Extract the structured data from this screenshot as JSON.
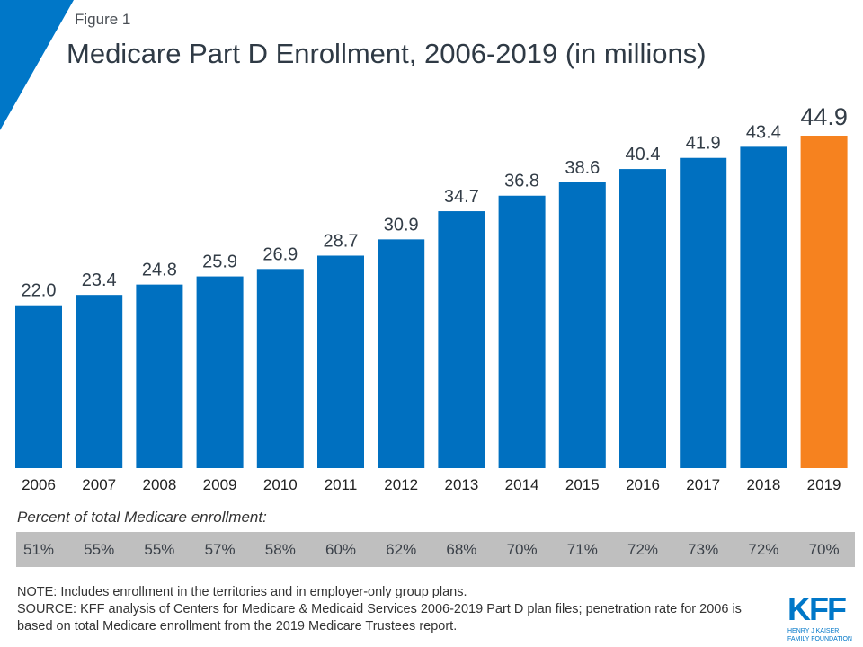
{
  "figure_label": "Figure 1",
  "title": "Medicare Part D Enrollment, 2006-2019 (in millions)",
  "colors": {
    "bar": "#0070c0",
    "highlight": "#f6821f",
    "accent_triangle": "#0077c8",
    "percent_band": "#bfbfbf"
  },
  "chart_data": {
    "type": "bar",
    "title": "Medicare Part D Enrollment, 2006-2019 (in millions)",
    "categories": [
      "2006",
      "2007",
      "2008",
      "2009",
      "2010",
      "2011",
      "2012",
      "2013",
      "2014",
      "2015",
      "2016",
      "2017",
      "2018",
      "2019"
    ],
    "values": [
      22.0,
      23.4,
      24.8,
      25.9,
      26.9,
      28.7,
      30.9,
      34.7,
      36.8,
      38.6,
      40.4,
      41.9,
      43.4,
      44.9
    ],
    "value_labels": [
      "22.0",
      "23.4",
      "24.8",
      "25.9",
      "26.9",
      "28.7",
      "30.9",
      "34.7",
      "36.8",
      "38.6",
      "40.4",
      "41.9",
      "43.4",
      "44.9"
    ],
    "highlighted_category": "2019",
    "ylim": [
      0,
      44.9
    ],
    "grid": false,
    "xlabel": "",
    "ylabel": ""
  },
  "percent": {
    "label": "Percent of total Medicare enrollment:",
    "values": [
      "51%",
      "55%",
      "55%",
      "57%",
      "58%",
      "60%",
      "62%",
      "68%",
      "70%",
      "71%",
      "72%",
      "73%",
      "72%",
      "70%"
    ]
  },
  "note": "NOTE: Includes  enrollment  in the territories and in employer-only  group plans.",
  "source": "SOURCE: KFF analysis  of Centers for Medicare & Medicaid Services 2006-2019 Part D plan files; penetration rate for 2006 is based on total Medicare enrollment  from the 2019 Medicare Trustees  report.",
  "logo": {
    "text": "KFF",
    "sub1": "HENRY J KAISER",
    "sub2": "FAMILY FOUNDATION"
  }
}
